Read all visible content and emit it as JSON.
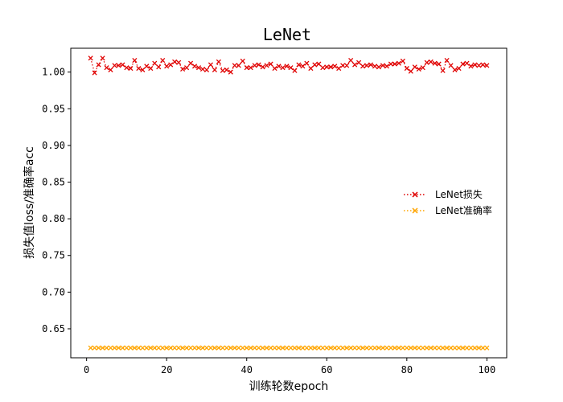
{
  "chart_data": {
    "type": "line",
    "title": "LeNet",
    "xlabel": "训练轮数epoch",
    "ylabel": "损失值loss/准确率acc",
    "xlim": [
      -3.95,
      104.95
    ],
    "ylim": [
      0.6105,
      1.0325
    ],
    "xticks": [
      0,
      20,
      40,
      60,
      80,
      100
    ],
    "yticks": [
      0.65,
      0.7,
      0.75,
      0.8,
      0.85,
      0.9,
      0.95,
      1.0
    ],
    "ytick_labels": [
      "0.65",
      "0.70",
      "0.75",
      "0.80",
      "0.85",
      "0.90",
      "0.95",
      "1.00"
    ],
    "grid": false,
    "legend_position": "center-right",
    "series": [
      {
        "name": "LeNet损失",
        "color": "#e00000",
        "marker": "x",
        "linestyle": "dotted",
        "x": [
          1,
          2,
          3,
          4,
          5,
          6,
          7,
          8,
          9,
          10,
          11,
          12,
          13,
          14,
          15,
          16,
          17,
          18,
          19,
          20,
          21,
          22,
          23,
          24,
          25,
          26,
          27,
          28,
          29,
          30,
          31,
          32,
          33,
          34,
          35,
          36,
          37,
          38,
          39,
          40,
          41,
          42,
          43,
          44,
          45,
          46,
          47,
          48,
          49,
          50,
          51,
          52,
          53,
          54,
          55,
          56,
          57,
          58,
          59,
          60,
          61,
          62,
          63,
          64,
          65,
          66,
          67,
          68,
          69,
          70,
          71,
          72,
          73,
          74,
          75,
          76,
          77,
          78,
          79,
          80,
          81,
          82,
          83,
          84,
          85,
          86,
          87,
          88,
          89,
          90,
          91,
          92,
          93,
          94,
          95,
          96,
          97,
          98,
          99,
          100
        ],
        "values": [
          1.019,
          0.999,
          1.01,
          1.019,
          1.006,
          1.003,
          1.009,
          1.009,
          1.01,
          1.006,
          1.005,
          1.016,
          1.005,
          1.003,
          1.008,
          1.005,
          1.012,
          1.007,
          1.016,
          1.008,
          1.01,
          1.014,
          1.013,
          1.004,
          1.006,
          1.012,
          1.008,
          1.006,
          1.004,
          1.003,
          1.01,
          1.003,
          1.014,
          1.002,
          1.003,
          1.0,
          1.009,
          1.009,
          1.015,
          1.006,
          1.006,
          1.009,
          1.01,
          1.007,
          1.009,
          1.011,
          1.005,
          1.008,
          1.006,
          1.008,
          1.006,
          1.002,
          1.01,
          1.008,
          1.012,
          1.005,
          1.01,
          1.011,
          1.006,
          1.007,
          1.007,
          1.008,
          1.005,
          1.009,
          1.009,
          1.016,
          1.01,
          1.013,
          1.008,
          1.009,
          1.01,
          1.008,
          1.007,
          1.009,
          1.008,
          1.011,
          1.011,
          1.012,
          1.015,
          1.005,
          1.001,
          1.007,
          1.004,
          1.006,
          1.013,
          1.014,
          1.012,
          1.011,
          1.002,
          1.016,
          1.009,
          1.003,
          1.005,
          1.011,
          1.012,
          1.008,
          1.01,
          1.009,
          1.01,
          1.009
        ]
      },
      {
        "name": "LeNet准确率",
        "color": "#ffa500",
        "marker": "x",
        "linestyle": "dotted",
        "x": [
          1,
          2,
          3,
          4,
          5,
          6,
          7,
          8,
          9,
          10,
          11,
          12,
          13,
          14,
          15,
          16,
          17,
          18,
          19,
          20,
          21,
          22,
          23,
          24,
          25,
          26,
          27,
          28,
          29,
          30,
          31,
          32,
          33,
          34,
          35,
          36,
          37,
          38,
          39,
          40,
          41,
          42,
          43,
          44,
          45,
          46,
          47,
          48,
          49,
          50,
          51,
          52,
          53,
          54,
          55,
          56,
          57,
          58,
          59,
          60,
          61,
          62,
          63,
          64,
          65,
          66,
          67,
          68,
          69,
          70,
          71,
          72,
          73,
          74,
          75,
          76,
          77,
          78,
          79,
          80,
          81,
          82,
          83,
          84,
          85,
          86,
          87,
          88,
          89,
          90,
          91,
          92,
          93,
          94,
          95,
          96,
          97,
          98,
          99,
          100
        ],
        "values": [
          0.624,
          0.624,
          0.624,
          0.624,
          0.624,
          0.624,
          0.624,
          0.624,
          0.624,
          0.624,
          0.624,
          0.624,
          0.624,
          0.624,
          0.624,
          0.624,
          0.624,
          0.624,
          0.624,
          0.624,
          0.624,
          0.624,
          0.624,
          0.624,
          0.624,
          0.624,
          0.624,
          0.624,
          0.624,
          0.624,
          0.624,
          0.624,
          0.624,
          0.624,
          0.624,
          0.624,
          0.624,
          0.624,
          0.624,
          0.624,
          0.624,
          0.624,
          0.624,
          0.624,
          0.624,
          0.624,
          0.624,
          0.624,
          0.624,
          0.624,
          0.624,
          0.624,
          0.624,
          0.624,
          0.624,
          0.624,
          0.624,
          0.624,
          0.624,
          0.624,
          0.624,
          0.624,
          0.624,
          0.624,
          0.624,
          0.624,
          0.624,
          0.624,
          0.624,
          0.624,
          0.624,
          0.624,
          0.624,
          0.624,
          0.624,
          0.624,
          0.624,
          0.624,
          0.624,
          0.624,
          0.624,
          0.624,
          0.624,
          0.624,
          0.624,
          0.624,
          0.624,
          0.624,
          0.624,
          0.624,
          0.624,
          0.624,
          0.624,
          0.624,
          0.624,
          0.624,
          0.624,
          0.624,
          0.624,
          0.624
        ]
      }
    ]
  }
}
